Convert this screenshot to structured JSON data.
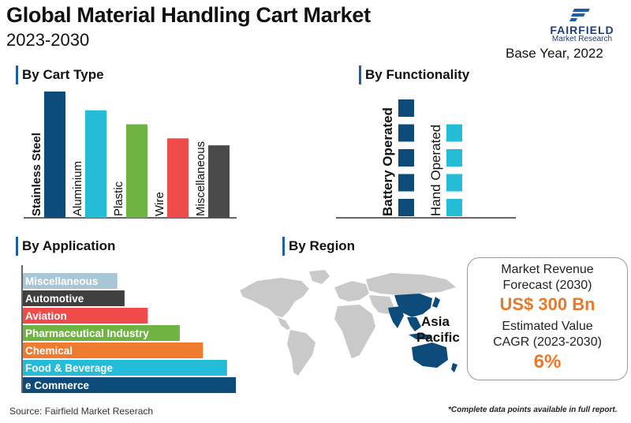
{
  "header": {
    "title": "Global Material Handling Cart Market",
    "subtitle": "2023-2030",
    "logo_name": "FAIRFIELD",
    "logo_sub": "Market Research",
    "base_year": "Base Year, 2022"
  },
  "sections": {
    "cart_type": "By Cart Type",
    "functionality": "By Functionality",
    "application": "By Application",
    "region": "By Region"
  },
  "chart_data": [
    {
      "type": "bar",
      "title": "By Cart Type",
      "categories": [
        "Stainless Steel",
        "Aluminium",
        "Plastic",
        "Wire",
        "Miscellaneous"
      ],
      "values": [
        5.4,
        4.6,
        4.0,
        3.4,
        3.1
      ],
      "colors": [
        "#0d4c7a",
        "#25bcd8",
        "#6fb443",
        "#f04b4b",
        "#4a4a4a"
      ]
    },
    {
      "type": "bar",
      "title": "By Functionality",
      "categories": [
        "Battery Operated",
        "Hand Operated"
      ],
      "values": [
        5,
        4
      ],
      "colors": [
        "#0d4c7a",
        "#25bcd8"
      ]
    },
    {
      "type": "bar",
      "orientation": "horizontal",
      "title": "By Application",
      "categories": [
        "Miscellaneous",
        "Automotive",
        "Aviation",
        "Pharmaceutical Industry",
        "Chemical",
        "Food & Beverage",
        "e Commerce"
      ],
      "values": [
        11.8,
        12.7,
        15.6,
        19.6,
        22.5,
        25.5,
        26.6
      ],
      "colors": [
        "#a9c6d6",
        "#3f3f3f",
        "#f04b4b",
        "#6fb443",
        "#ef7b30",
        "#25bcd8",
        "#0d4c7a"
      ]
    }
  ],
  "region": {
    "highlight_label_1": "Asia",
    "highlight_label_2": "Pacific",
    "highlight_color": "#0d4c7a"
  },
  "forecast": {
    "line1": "Market Revenue",
    "line2": "Forecast (2030)",
    "revenue": "US$ 300 Bn",
    "line3": "Estimated Value",
    "line4": "CAGR (2023-2030)",
    "cagr": "6%",
    "accent_color": "#e8792b"
  },
  "footer": {
    "source": "Source: Fairfield Market Reserach",
    "note": "*Complete data points available in full report."
  }
}
